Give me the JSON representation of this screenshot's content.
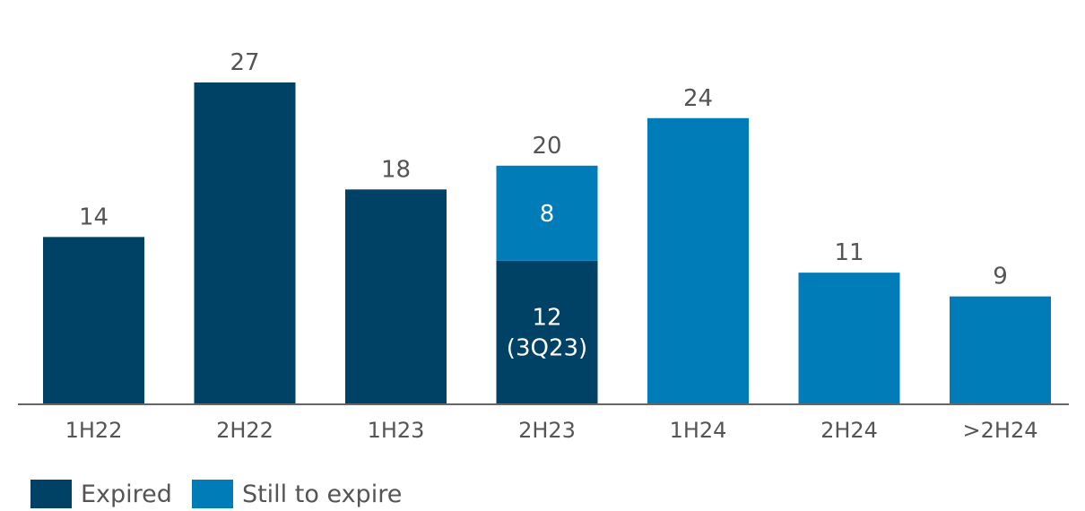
{
  "chart_data": {
    "type": "bar",
    "stacked": true,
    "title": "",
    "xlabel": "",
    "ylabel": "",
    "ylim": [
      0,
      30
    ],
    "grid": false,
    "legend_position": "bottom-left",
    "categories": [
      "1H22",
      "2H22",
      "1H23",
      "2H23",
      "1H24",
      "2H24",
      ">2H24"
    ],
    "series": [
      {
        "name": "Expired",
        "color": "#004266",
        "values": [
          14,
          27,
          18,
          12,
          0,
          0,
          0
        ]
      },
      {
        "name": "Still to expire",
        "color": "#007cb9",
        "values": [
          0,
          0,
          0,
          8,
          24,
          11,
          9
        ]
      }
    ],
    "totals": [
      "14",
      "27",
      "18",
      "20",
      "24",
      "11",
      "9"
    ],
    "inner_labels": [
      {
        "category": "2H23",
        "series": "Still to expire",
        "lines": [
          "8"
        ]
      },
      {
        "category": "2H23",
        "series": "Expired",
        "lines": [
          "12",
          "(3Q23)"
        ]
      }
    ]
  },
  "legend": {
    "items": [
      {
        "label": "Expired",
        "color": "#004266"
      },
      {
        "label": "Still to expire",
        "color": "#007cb9"
      }
    ]
  },
  "colors": {
    "axis": "#666666",
    "label_text": "#555555",
    "inner_text": "#ffffff"
  }
}
